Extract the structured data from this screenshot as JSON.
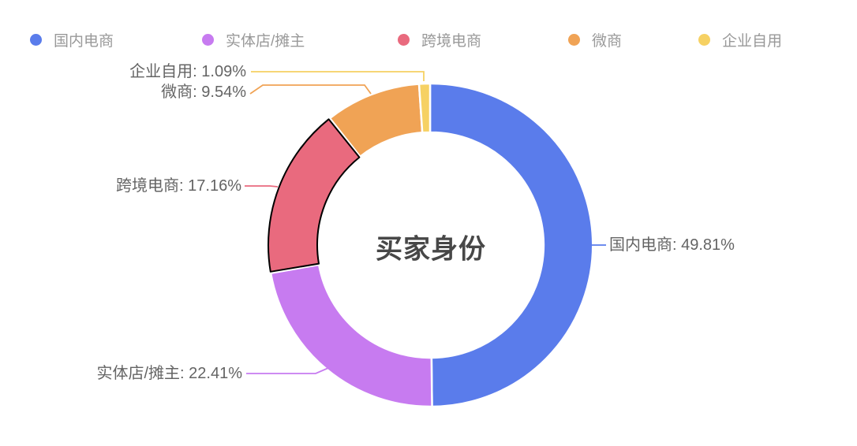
{
  "chart_data": {
    "type": "pie",
    "donut": true,
    "title": "买家身份",
    "legend_position": "top",
    "categories": [
      "国内电商",
      "实体店/摊主",
      "跨境电商",
      "微商",
      "企业自用"
    ],
    "values": [
      49.81,
      22.41,
      17.16,
      9.54,
      1.09
    ],
    "unit": "%",
    "colors": [
      "#5A7CEB",
      "#C77BF0",
      "#E96A7E",
      "#F0A355",
      "#F6D163"
    ],
    "labels": [
      "国内电商: 49.81%",
      "实体店/摊主: 22.41%",
      "跨境电商: 17.16%",
      "微商: 9.54%",
      "企业自用: 1.09%"
    ],
    "highlighted_slice": "跨境电商",
    "highlight_border_color": "#000000",
    "slice_gap_color": "#ffffff",
    "legend_text_color": "#999999",
    "label_text_color": "#646464",
    "title_color": "#474747"
  }
}
